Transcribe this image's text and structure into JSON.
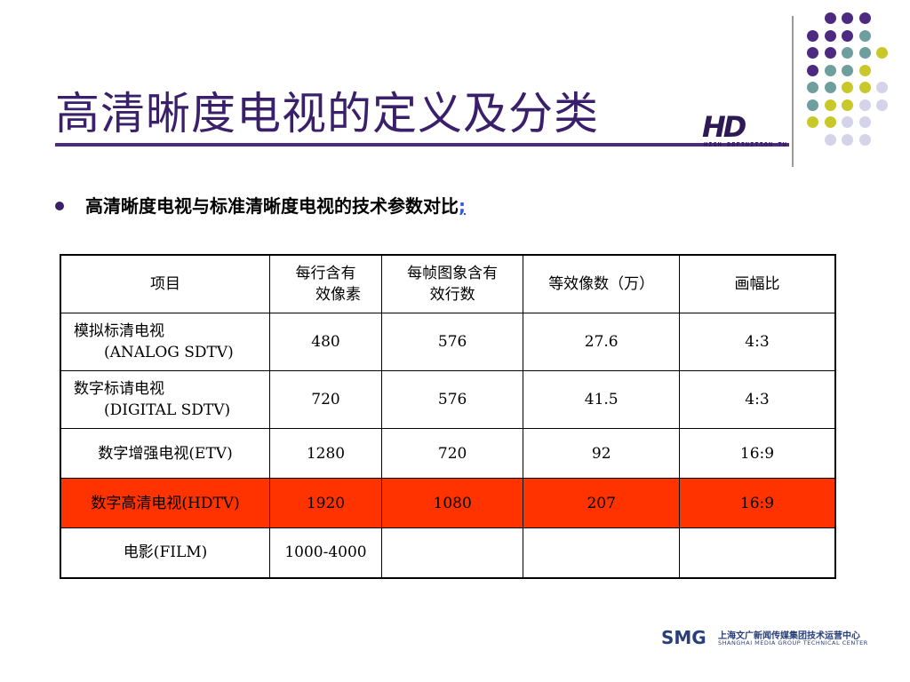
{
  "slide": {
    "title": "高清晰度电视的定义及分类",
    "bullet": "高清晰度电视与标准清晰度电视的技术参数对比",
    "bullet_link": ";"
  },
  "logo_hd": {
    "big": "HD",
    "small": "HIGH DEFINITION TV"
  },
  "logo_smg": {
    "mark": "SMG",
    "cn": "上海文广新闻传媒集团技术运营中心",
    "en": "SHANGHAI MEDIA GROUP TECHNICAL CENTER"
  },
  "dot_colors": {
    "purple": "#4b2a80",
    "teal": "#6f9e9e",
    "lime": "#c9c82a",
    "lavender": "#d4d3ea"
  },
  "table": {
    "headers": [
      {
        "l1": "每行含有",
        "l2": "效像素"
      },
      {
        "l1": "每帧图象含有",
        "l2": "效行数"
      },
      {
        "l1": "等效像数（万）",
        "l2": ""
      },
      {
        "l1": "画幅比",
        "l2": ""
      }
    ],
    "header_first": "项目",
    "rows": [
      {
        "name1": "模拟标清电视",
        "name2": "(ANALOG SDTV)",
        "c1": "480",
        "c2": "576",
        "c3": "27.6",
        "c4": "4:3"
      },
      {
        "name1": "数字标请电视",
        "name2": "(DIGITAL SDTV)",
        "c1": "720",
        "c2": "576",
        "c3": "41.5",
        "c4": "4:3"
      },
      {
        "name1": "数字增强电视(ETV)",
        "name2": "",
        "c1": "1280",
        "c2": "720",
        "c3": "92",
        "c4": "16:9"
      },
      {
        "name1": "数字高清电视(HDTV)",
        "name2": "",
        "c1": "1920",
        "c2": "1080",
        "c3": "207",
        "c4": "16:9"
      },
      {
        "name1": "电影(FILM)",
        "name2": "",
        "c1": "1000-4000",
        "c2": "",
        "c3": "",
        "c4": ""
      }
    ]
  }
}
